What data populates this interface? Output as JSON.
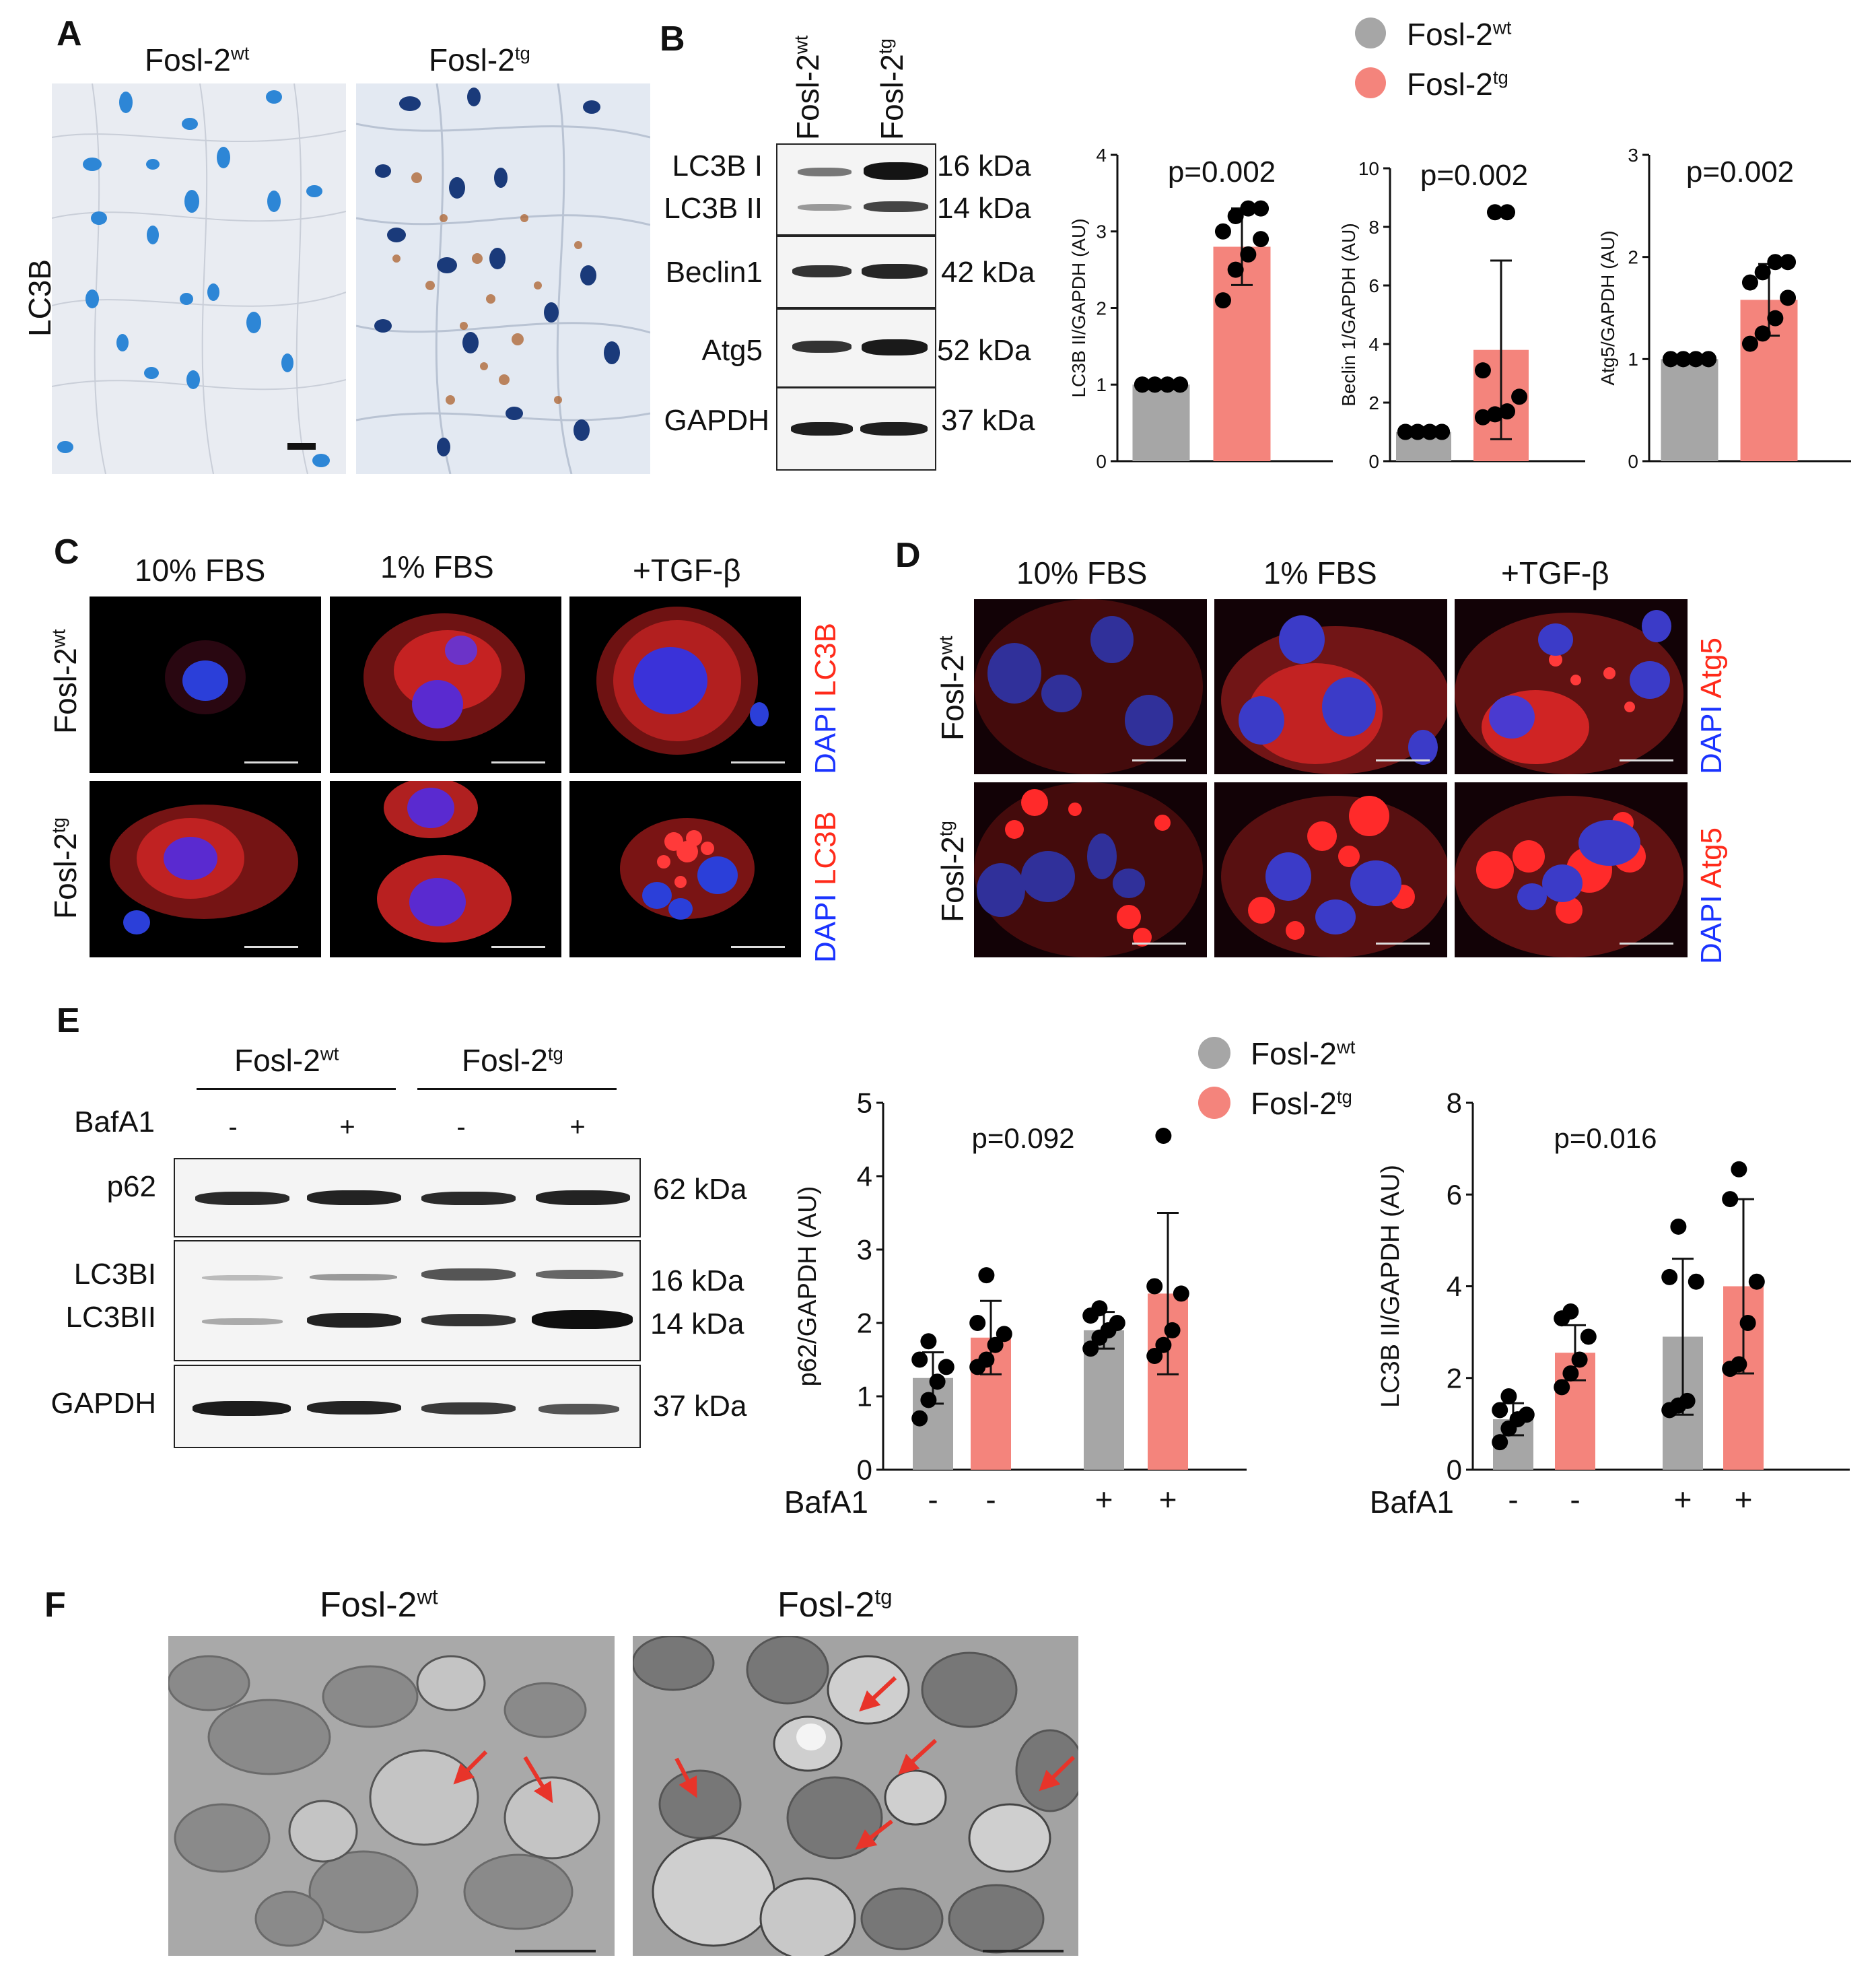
{
  "panels": {
    "a": "A",
    "b": "B",
    "c": "C",
    "d": "D",
    "e": "E",
    "f": "F"
  },
  "genotype": {
    "wt_base": "Fosl-2",
    "wt_sup": "wt",
    "tg_base": "Fosl-2",
    "tg_sup": "tg"
  },
  "panel_a": {
    "row_label": "LC3B"
  },
  "panel_b": {
    "blot_labels": [
      "LC3B I",
      "LC3B II",
      "Beclin1",
      "Atg5",
      "GAPDH"
    ],
    "kda_labels": [
      "16 kDa",
      "14 kDa",
      "42 kDa",
      "52 kDa",
      "37 kDa"
    ]
  },
  "panel_c": {
    "conditions": [
      "10% FBS",
      "1% FBS",
      "+TGF-β"
    ],
    "stain_blue": "DAPI",
    "stain_red": "LC3B"
  },
  "panel_d": {
    "conditions": [
      "10% FBS",
      "1% FBS",
      "+TGF-β"
    ],
    "stain_blue": "DAPI",
    "stain_red": "Atg5"
  },
  "panel_e": {
    "treatment": "BafA1",
    "signs": [
      "-",
      "+",
      "-",
      "+"
    ],
    "blot_labels": [
      "p62",
      "LC3BI",
      "LC3BII",
      "GAPDH"
    ],
    "kda_labels": [
      "62 kDa",
      "16 kDa",
      "14 kDa",
      "37 kDa"
    ],
    "chart_signs": [
      "-",
      "-",
      "+",
      "+"
    ]
  },
  "colors": {
    "wt": "#a6a6a6",
    "tg": "#f4847c",
    "dapi": "#1a33ff",
    "red_stain": "#ff2a1a"
  },
  "chart_data": [
    {
      "type": "bar",
      "categories": [
        "Fosl-2wt",
        "Fosl-2tg"
      ],
      "values": [
        1.0,
        2.8
      ],
      "errors": [
        0.0,
        0.5
      ],
      "points": [
        [
          1,
          1,
          1,
          1,
          1,
          1,
          1,
          1
        ],
        [
          2.1,
          2.5,
          2.7,
          2.9,
          3.0,
          3.2,
          3.3,
          3.3
        ]
      ],
      "ylabel": "LC3B II/GAPDH (AU)",
      "ylim": [
        0,
        4
      ],
      "yticks": [
        0,
        1,
        2,
        3,
        4
      ],
      "annotation": "p=0.002",
      "series_colors": [
        "#a6a6a6",
        "#f4847c"
      ]
    },
    {
      "type": "bar",
      "categories": [
        "Fosl-2wt",
        "Fosl-2tg"
      ],
      "values": [
        1.0,
        3.8
      ],
      "errors": [
        0.0,
        3.05
      ],
      "points": [
        [
          1,
          1,
          1,
          1,
          1,
          1,
          1,
          1
        ],
        [
          1.5,
          1.6,
          1.7,
          2.2,
          3.1,
          8.5,
          8.5
        ]
      ],
      "ylabel": "Beclin 1/GAPDH (AU)",
      "ylim": [
        0,
        10
      ],
      "yticks": [
        0,
        2,
        4,
        6,
        8,
        10
      ],
      "annotation": "p=0.002",
      "series_colors": [
        "#a6a6a6",
        "#f4847c"
      ]
    },
    {
      "type": "bar",
      "categories": [
        "Fosl-2wt",
        "Fosl-2tg"
      ],
      "values": [
        1.0,
        1.58
      ],
      "errors": [
        0.0,
        0.35
      ],
      "points": [
        [
          1,
          1,
          1,
          1,
          1,
          1,
          1,
          1
        ],
        [
          1.15,
          1.25,
          1.4,
          1.6,
          1.75,
          1.85,
          1.95,
          1.95
        ]
      ],
      "ylabel": "Atg5/GAPDH (AU)",
      "ylim": [
        0,
        3
      ],
      "yticks": [
        0,
        1,
        2,
        3
      ],
      "annotation": "p=0.002",
      "series_colors": [
        "#a6a6a6",
        "#f4847c"
      ]
    },
    {
      "type": "bar",
      "categories": [
        "-",
        "-",
        "+",
        "+"
      ],
      "values": [
        1.25,
        1.8,
        1.9,
        2.4
      ],
      "errors": [
        0.35,
        0.5,
        0.25,
        1.1
      ],
      "points": [
        [
          0.7,
          0.95,
          1.2,
          1.4,
          1.5,
          1.75
        ],
        [
          1.4,
          1.5,
          1.7,
          1.85,
          2.0,
          2.65
        ],
        [
          1.65,
          1.8,
          1.9,
          2.0,
          2.1,
          2.2
        ],
        [
          1.55,
          1.7,
          1.9,
          2.4,
          2.5,
          4.55
        ]
      ],
      "ylabel": "p62/GAPDH (AU)",
      "xlabel": "BafA1",
      "ylim": [
        0,
        5
      ],
      "yticks": [
        0,
        1,
        2,
        3,
        4,
        5
      ],
      "annotation": "p=0.092",
      "series_colors": [
        "#a6a6a6",
        "#f4847c",
        "#a6a6a6",
        "#f4847c"
      ]
    },
    {
      "type": "bar",
      "categories": [
        "-",
        "-",
        "+",
        "+"
      ],
      "values": [
        1.1,
        2.55,
        2.9,
        4.0
      ],
      "errors": [
        0.35,
        0.6,
        1.7,
        1.9
      ],
      "points": [
        [
          0.6,
          0.9,
          1.1,
          1.2,
          1.3,
          1.6
        ],
        [
          1.8,
          2.1,
          2.4,
          2.9,
          3.3,
          3.45
        ],
        [
          1.3,
          1.4,
          1.5,
          4.1,
          4.2,
          5.3
        ],
        [
          2.2,
          2.3,
          3.2,
          4.1,
          5.9,
          6.55
        ]
      ],
      "ylabel": "LC3B II/GAPDH (AU)",
      "xlabel": "BafA1",
      "ylim": [
        0,
        8
      ],
      "yticks": [
        0,
        2,
        4,
        6,
        8
      ],
      "annotation": "p=0.016",
      "series_colors": [
        "#a6a6a6",
        "#f4847c",
        "#a6a6a6",
        "#f4847c"
      ]
    }
  ]
}
